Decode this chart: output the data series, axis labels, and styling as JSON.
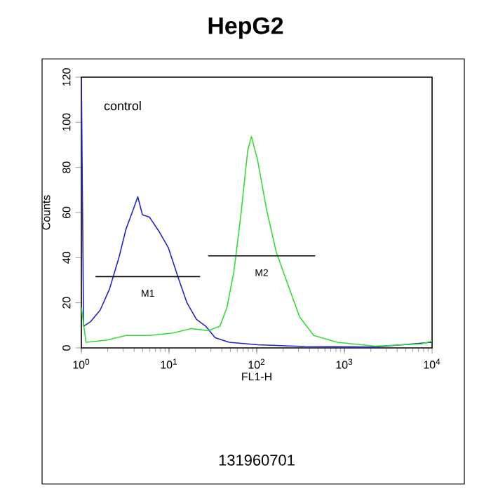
{
  "chart_data": {
    "type": "line",
    "title": "HepG2",
    "xlabel": "FL1-H",
    "ylabel": "Counts",
    "log": "x",
    "xlim": [
      1,
      10000
    ],
    "ylim": [
      0,
      120
    ],
    "xticks": [
      {
        "value": 1,
        "label": "10$^{0}$"
      },
      {
        "value": 10,
        "label": "10$^{1}$"
      },
      {
        "value": 100,
        "label": "10$^{2}$"
      },
      {
        "value": 1000,
        "label": "10$^{3}$"
      },
      {
        "value": 10000,
        "label": "10$^{4}$"
      }
    ],
    "yticks": [
      0,
      20,
      40,
      60,
      80,
      100,
      120
    ],
    "grid": false,
    "series": [
      {
        "color": "#2222cc",
        "x": [
          1,
          1.06,
          1.28,
          1.64,
          2.09,
          2.68,
          3.23,
          3.88,
          4.4,
          4.97,
          5.97,
          7.66,
          9.8,
          12.5,
          16,
          20.5,
          26.2,
          33.6,
          48.6,
          102,
          349,
          2220,
          10000
        ],
        "values": [
          120,
          9.6,
          11.7,
          16.8,
          26,
          40,
          52.7,
          61,
          67,
          59,
          58,
          51.7,
          44.5,
          32,
          20,
          12.7,
          9.6,
          4.5,
          2.5,
          1.4,
          0.6,
          0.4,
          2.5
        ]
      },
      {
        "color": "#33dd33",
        "x": [
          1,
          1.13,
          1.97,
          3.23,
          5.97,
          11.1,
          18.1,
          27.9,
          38,
          45.7,
          55,
          66,
          79,
          87,
          102,
          130,
          167,
          227,
          309,
          447,
          832,
          2220,
          7590,
          10000
        ],
        "values": [
          18,
          2.5,
          3.5,
          5.5,
          5.5,
          6.6,
          8.6,
          7.6,
          9.6,
          17.8,
          34,
          59,
          87.6,
          93.7,
          83.5,
          61,
          42.5,
          28,
          13.7,
          5.5,
          2.5,
          0.8,
          1.8,
          3
        ]
      },
      {
        "name": "M1",
        "color": "#000000",
        "x": [
          1.45,
          22.6
        ],
        "values": [
          31.6,
          31.6
        ]
      },
      {
        "name": "M2",
        "color": "#000000",
        "x": [
          27.9,
          464
        ],
        "values": [
          40.8,
          40.8
        ]
      }
    ],
    "annotations": [
      "control",
      "131960701"
    ]
  }
}
